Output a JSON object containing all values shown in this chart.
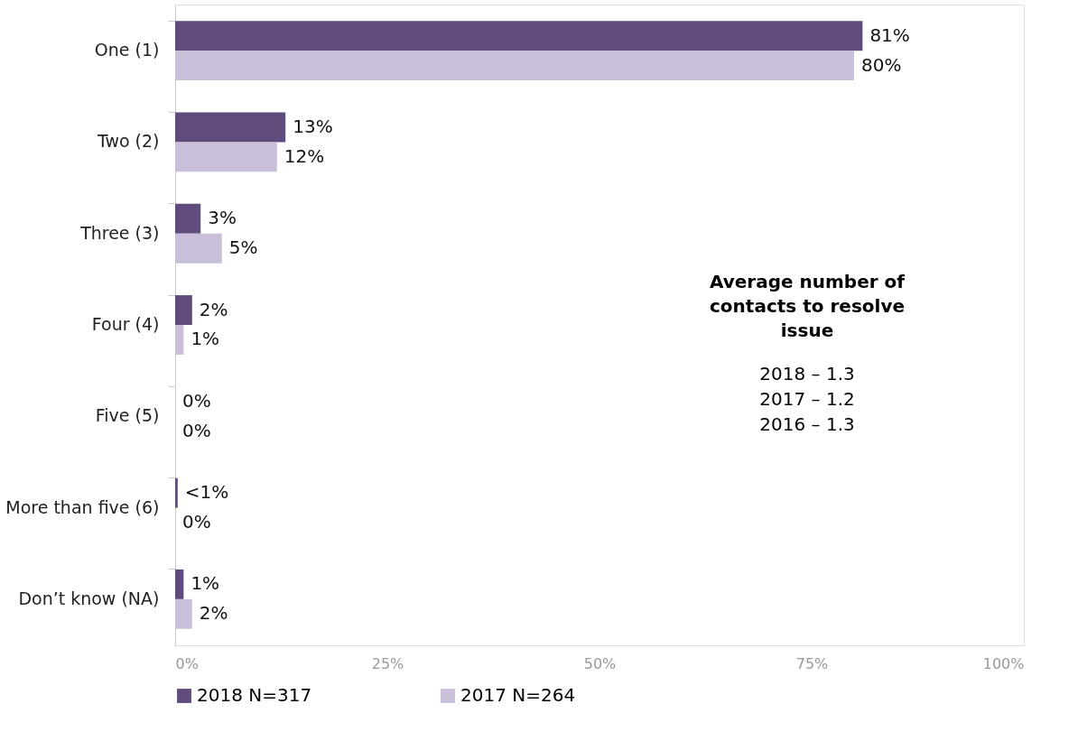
{
  "chart_data": {
    "type": "bar",
    "orientation": "horizontal",
    "categories": [
      "One (1)",
      "Two (2)",
      "Three (3)",
      "Four (4)",
      "Five (5)",
      "More than five (6)",
      "Don’t know (NA)"
    ],
    "series": [
      {
        "name": "2018 N=317",
        "color": "#5f4b7c",
        "values": [
          81,
          13,
          3,
          2,
          0,
          0.3,
          1
        ],
        "value_labels": [
          "81%",
          "13%",
          "3%",
          "2%",
          "0%",
          "<1%",
          "1%"
        ]
      },
      {
        "name": "2017 N=264",
        "color": "#c9bfd9",
        "values": [
          80,
          12,
          5.5,
          1,
          0,
          0,
          2
        ],
        "value_labels": [
          "80%",
          "12%",
          "5%",
          "1%",
          "0%",
          "0%",
          "2%"
        ]
      }
    ],
    "xlim": [
      0,
      100
    ],
    "xticks": [
      {
        "value": 0,
        "label": "0%"
      },
      {
        "value": 25,
        "label": "25%"
      },
      {
        "value": 50,
        "label": "50%"
      },
      {
        "value": 75,
        "label": "75%"
      },
      {
        "value": 100,
        "label": "100%"
      }
    ],
    "grid": false,
    "legend": "bottom",
    "annotations": [
      "Average number of contacts to resolve issue",
      "2018 – 1.3",
      "2017 – 1.2",
      "2016 – 1.3"
    ]
  }
}
